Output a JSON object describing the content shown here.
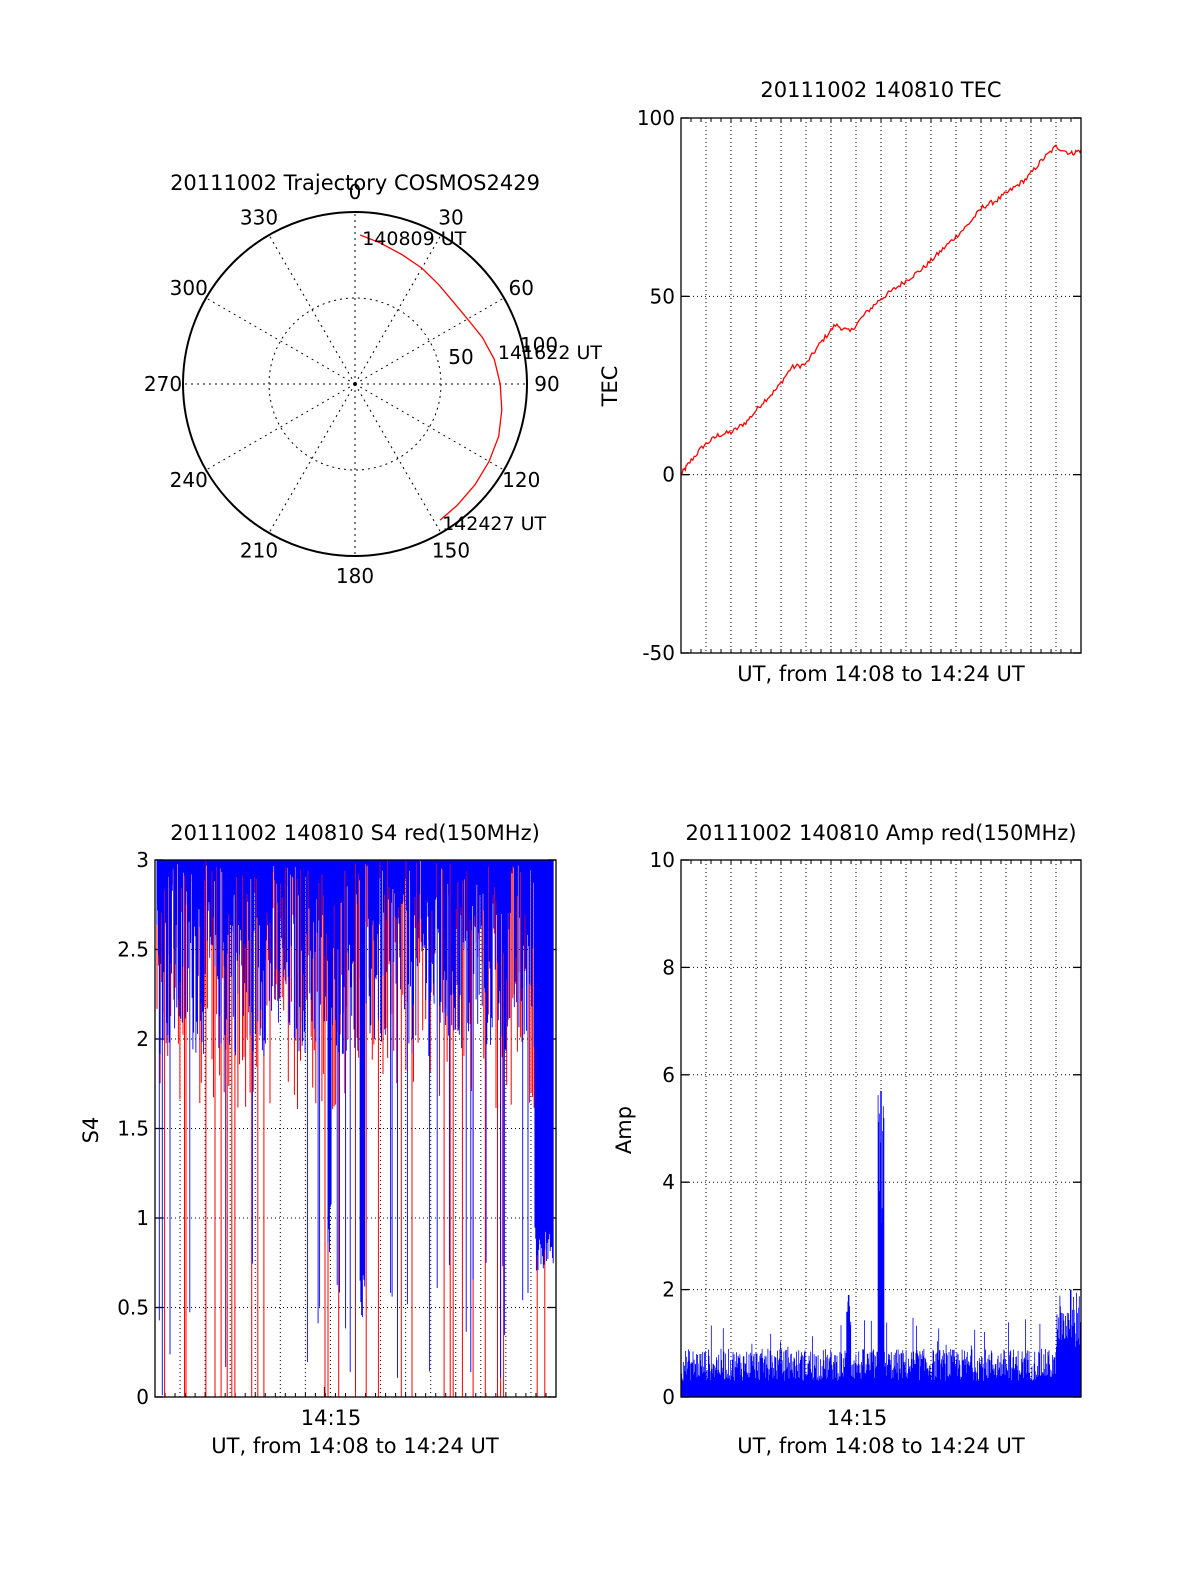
{
  "colors": {
    "red": "#ff0000",
    "blue": "#0000ff",
    "axis": "#000000",
    "grid": "#000000"
  },
  "chart_data": [
    {
      "type": "polar",
      "title": "20111002 Trajectory COSMOS2429",
      "angle_labels": [
        "0",
        "30",
        "60",
        "90",
        "120",
        "150",
        "180",
        "210",
        "240",
        "270",
        "300",
        "330"
      ],
      "radial_labels": [
        "50",
        "100"
      ],
      "time_labels": [
        {
          "text": "140809 UT",
          "az": 2,
          "el": 12
        },
        {
          "text": "141622 UT",
          "az": 76,
          "el": 14
        },
        {
          "text": "142427 UT",
          "az": 148,
          "el": 6
        }
      ],
      "trajectory": {
        "az": [
          2,
          10,
          20,
          30,
          40,
          50,
          60,
          70,
          80,
          90,
          100,
          110,
          120,
          130,
          140,
          148
        ],
        "el": [
          12,
          15,
          18,
          20,
          22,
          23,
          22,
          19,
          16,
          14,
          12,
          10,
          9,
          8,
          7,
          6
        ]
      },
      "grid": true
    },
    {
      "type": "line",
      "title": "20111002 140810 TEC",
      "xlabel": "UT, from 14:08 to 14:24 UT",
      "ylabel": "TEC",
      "ylim": [
        -50,
        100
      ],
      "yticks": [
        "-50",
        "0",
        "50",
        "100"
      ],
      "xlim": [
        14.135,
        14.407
      ],
      "grid": true,
      "series": [
        {
          "color": "red",
          "x": [
            14.135,
            14.14,
            14.15,
            14.16,
            14.17,
            14.18,
            14.19,
            14.2,
            14.21,
            14.22,
            14.23,
            14.24,
            14.25,
            14.26,
            14.27,
            14.28,
            14.29,
            14.3,
            14.31,
            14.32,
            14.33,
            14.34,
            14.35,
            14.36,
            14.37,
            14.38,
            14.39,
            14.4,
            14.407
          ],
          "y": [
            0,
            3,
            8,
            11,
            12,
            15,
            20,
            24,
            30,
            31,
            37,
            42,
            40,
            45,
            49,
            52,
            55,
            58,
            62,
            66,
            70,
            75,
            77,
            80,
            83,
            88,
            92,
            90,
            91
          ]
        }
      ]
    },
    {
      "type": "line",
      "title": "20111002 140810 S4 red(150MHz)",
      "xlabel": "UT, from 14:08 to 14:24 UT",
      "ylabel": "S4",
      "ylim": [
        0,
        3
      ],
      "yticks": [
        "0",
        "0.5",
        "1",
        "1.5",
        "2",
        "2.5",
        "3"
      ],
      "xtick_label": "14:15",
      "xtick_value": 14.25,
      "xlim": [
        14.135,
        14.407
      ],
      "grid": true,
      "description_series": [
        "red",
        "blue"
      ]
    },
    {
      "type": "line",
      "title": "20111002 140810 Amp red(150MHz)",
      "xlabel": "UT, from 14:08 to 14:24 UT",
      "ylabel": "Amp",
      "ylim": [
        0,
        10
      ],
      "yticks": [
        "0",
        "2",
        "4",
        "6",
        "8",
        "10"
      ],
      "xtick_label": "14:15",
      "xtick_value": 14.25,
      "xlim": [
        14.135,
        14.407
      ],
      "grid": true,
      "spikes": [
        {
          "x": 14.249,
          "y": 1.9
        },
        {
          "x": 14.271,
          "y": 5.7
        },
        {
          "x": 14.4,
          "y": 2.0
        }
      ]
    }
  ]
}
